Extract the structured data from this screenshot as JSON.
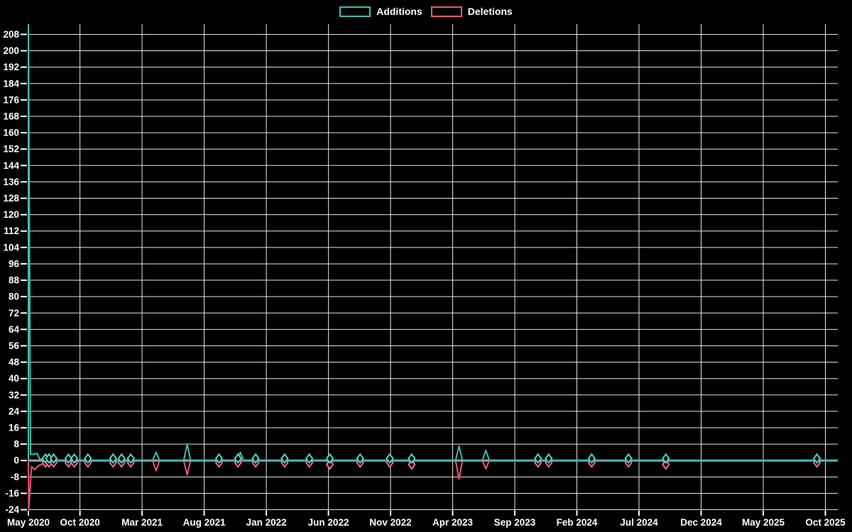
{
  "page": {
    "background": "#000000",
    "text_color": "#ffffff",
    "grid_color": "#e6e6e6",
    "zero_line_color": "#9aa5aa"
  },
  "legend": {
    "items": [
      {
        "label": "Additions",
        "color": "#3dbfb1"
      },
      {
        "label": "Deletions",
        "color": "#ee5577"
      }
    ]
  },
  "chart_data": {
    "type": "line",
    "title": "",
    "xlabel": "",
    "ylabel": "",
    "x_axis": {
      "unit": "months_since_2020_05",
      "domain": [
        0.85,
        66.0
      ],
      "tick_positions": [
        0,
        5,
        10,
        15,
        20,
        25,
        30,
        35,
        40,
        45,
        50,
        55,
        60,
        65
      ],
      "tick_labels": [
        "May 2020",
        "Oct 2020",
        "Mar 2021",
        "Aug 2021",
        "Jan 2022",
        "Jun 2022",
        "Nov 2022",
        "Apr 2023",
        "Sep 2023",
        "Feb 2024",
        "Jul 2024",
        "Dec 2024",
        "May 2025",
        "Oct 2025"
      ]
    },
    "y_axis": {
      "domain": [
        -24.5,
        213
      ],
      "tick_step": 8,
      "tick_values": [
        208,
        200,
        192,
        184,
        176,
        168,
        160,
        152,
        144,
        136,
        128,
        120,
        112,
        104,
        96,
        88,
        80,
        72,
        64,
        56,
        48,
        40,
        32,
        24,
        16,
        8,
        0,
        -8,
        -16,
        -24
      ]
    },
    "grid": true,
    "legend_position": "top-center",
    "series": [
      {
        "name": "Additions",
        "color": "#3dbfb1",
        "marker_color": "#4ed2c3",
        "marker_shape": "hollow-diamond",
        "points_month_value_marker": [
          [
            0.85,
            214,
            0
          ],
          [
            1.02,
            3,
            0
          ],
          [
            1.28,
            3,
            0
          ],
          [
            1.55,
            3.5,
            0
          ],
          [
            1.78,
            0.5,
            0
          ],
          [
            2.23,
            1,
            1
          ],
          [
            2.51,
            1,
            1
          ],
          [
            2.88,
            1,
            1
          ],
          [
            4.07,
            1,
            1
          ],
          [
            4.54,
            1,
            1
          ],
          [
            5.64,
            1,
            1
          ],
          [
            7.67,
            1,
            1
          ],
          [
            8.35,
            1,
            1
          ],
          [
            9.09,
            1,
            1
          ],
          [
            11.13,
            4,
            0
          ],
          [
            13.63,
            8,
            0
          ],
          [
            16.19,
            1,
            1
          ],
          [
            17.72,
            1,
            1
          ],
          [
            17.9,
            4,
            0
          ],
          [
            19.14,
            1,
            1
          ],
          [
            21.47,
            1,
            1
          ],
          [
            23.46,
            1,
            1
          ],
          [
            25.11,
            1,
            1
          ],
          [
            27.55,
            1,
            1
          ],
          [
            29.94,
            1,
            1
          ],
          [
            31.7,
            1,
            1
          ],
          [
            35.51,
            7,
            0
          ],
          [
            37.67,
            5,
            0
          ],
          [
            41.87,
            1,
            1
          ],
          [
            42.73,
            1,
            1
          ],
          [
            46.19,
            1,
            1
          ],
          [
            49.15,
            1,
            1
          ],
          [
            52.16,
            1,
            1
          ],
          [
            64.32,
            1,
            1
          ]
        ]
      },
      {
        "name": "Deletions",
        "color": "#ee5577",
        "marker_color": "#f56a8e",
        "marker_shape": "hollow-diamond",
        "points_month_value_marker": [
          [
            0.88,
            -24,
            0
          ],
          [
            1.1,
            -3,
            0
          ],
          [
            1.35,
            -4.5,
            0
          ],
          [
            1.65,
            -2.5,
            0
          ],
          [
            1.9,
            -2,
            0
          ],
          [
            2.23,
            -1,
            1
          ],
          [
            2.51,
            -1,
            1
          ],
          [
            2.88,
            -1,
            1
          ],
          [
            4.07,
            -1,
            1
          ],
          [
            4.54,
            -1,
            1
          ],
          [
            5.64,
            -1,
            1
          ],
          [
            7.67,
            -1,
            1
          ],
          [
            8.35,
            -1,
            1
          ],
          [
            9.09,
            -1,
            1
          ],
          [
            11.13,
            -5,
            0
          ],
          [
            13.63,
            -7,
            0
          ],
          [
            16.19,
            -1,
            1
          ],
          [
            17.72,
            -1,
            1
          ],
          [
            19.14,
            -1,
            1
          ],
          [
            21.47,
            -1,
            1
          ],
          [
            23.46,
            -1,
            1
          ],
          [
            25.11,
            -2,
            1
          ],
          [
            27.55,
            -1,
            1
          ],
          [
            29.94,
            -1,
            1
          ],
          [
            31.7,
            -2,
            1
          ],
          [
            35.51,
            -9,
            0
          ],
          [
            37.67,
            -4,
            0
          ],
          [
            41.87,
            -1,
            1
          ],
          [
            42.73,
            -1,
            1
          ],
          [
            46.19,
            -1,
            1
          ],
          [
            49.15,
            -1,
            1
          ],
          [
            52.16,
            -2,
            1
          ],
          [
            64.32,
            -1,
            1
          ]
        ]
      }
    ]
  }
}
